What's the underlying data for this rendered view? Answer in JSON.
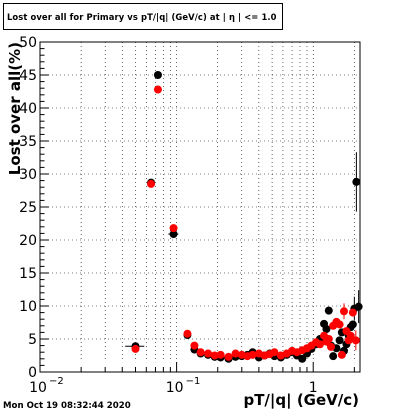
{
  "chart_data": {
    "type": "scatter",
    "title": "Lost over all for Primary vs pT/|q| (GeV/c) at | η | <= 1.0",
    "xlabel": "pT/|q| (GeV/c)",
    "ylabel": "Lost over all(%)",
    "x_scale": "log",
    "xlim": [
      0.01,
      2.2
    ],
    "ylim": [
      0,
      50
    ],
    "y_ticks": [
      0,
      5,
      10,
      15,
      20,
      25,
      30,
      35,
      40,
      45,
      50
    ],
    "y_tick_labels": [
      "0",
      "5",
      "10",
      "15",
      "20",
      "25",
      "30",
      "35",
      "40",
      "45",
      "50"
    ],
    "x_major_ticks": [
      0.01,
      0.1,
      1
    ],
    "x_tick_labels": [
      {
        "base": "10",
        "exp": "−2"
      },
      {
        "base": "10",
        "exp": "−1"
      },
      {
        "base": "1",
        "exp": ""
      }
    ],
    "grid": true,
    "timestamp": "Mon Oct 19 08:32:44 2020",
    "series": [
      {
        "color": "#000000",
        "points": [
          {
            "x": 0.05,
            "y": 3.9,
            "xerr": 0.008
          },
          {
            "x": 0.065,
            "y": 28.7
          },
          {
            "x": 0.073,
            "y": 45.0
          },
          {
            "x": 0.095,
            "y": 20.9,
            "xerr": 0.008
          },
          {
            "x": 0.12,
            "y": 5.6
          },
          {
            "x": 0.135,
            "y": 3.4
          },
          {
            "x": 0.15,
            "y": 2.8
          },
          {
            "x": 0.17,
            "y": 2.6
          },
          {
            "x": 0.19,
            "y": 2.3
          },
          {
            "x": 0.21,
            "y": 2.2
          },
          {
            "x": 0.24,
            "y": 2.0
          },
          {
            "x": 0.27,
            "y": 2.3
          },
          {
            "x": 0.3,
            "y": 2.4
          },
          {
            "x": 0.33,
            "y": 2.6
          },
          {
            "x": 0.36,
            "y": 3.0
          },
          {
            "x": 0.4,
            "y": 2.2
          },
          {
            "x": 0.44,
            "y": 2.5
          },
          {
            "x": 0.48,
            "y": 2.8
          },
          {
            "x": 0.52,
            "y": 2.4
          },
          {
            "x": 0.58,
            "y": 2.2
          },
          {
            "x": 0.64,
            "y": 2.6
          },
          {
            "x": 0.7,
            "y": 3.0
          },
          {
            "x": 0.76,
            "y": 2.5
          },
          {
            "x": 0.83,
            "y": 2.0
          },
          {
            "x": 0.9,
            "y": 2.8
          },
          {
            "x": 0.97,
            "y": 3.5
          },
          {
            "x": 1.05,
            "y": 4.2
          },
          {
            "x": 1.12,
            "y": 5.0
          },
          {
            "x": 1.2,
            "y": 7.3
          },
          {
            "x": 1.25,
            "y": 6.5
          },
          {
            "x": 1.3,
            "y": 9.3
          },
          {
            "x": 1.35,
            "y": 4.0
          },
          {
            "x": 1.4,
            "y": 2.4
          },
          {
            "x": 1.48,
            "y": 3.6
          },
          {
            "x": 1.56,
            "y": 4.8
          },
          {
            "x": 1.62,
            "y": 6.0
          },
          {
            "x": 1.68,
            "y": 3.2
          },
          {
            "x": 1.75,
            "y": 4.2
          },
          {
            "x": 1.82,
            "y": 5.5
          },
          {
            "x": 1.88,
            "y": 6.8
          },
          {
            "x": 1.95,
            "y": 7.2
          },
          {
            "x": 2.0,
            "y": 9.6,
            "yerr": 1.8
          },
          {
            "x": 2.07,
            "y": 28.8,
            "yerr": 4.5
          },
          {
            "x": 2.15,
            "y": 9.9,
            "yerr": 2.5
          }
        ]
      },
      {
        "color": "#ff0000",
        "points": [
          {
            "x": 0.05,
            "y": 3.5
          },
          {
            "x": 0.065,
            "y": 28.5
          },
          {
            "x": 0.073,
            "y": 42.8
          },
          {
            "x": 0.095,
            "y": 21.8
          },
          {
            "x": 0.12,
            "y": 5.8
          },
          {
            "x": 0.135,
            "y": 4.0
          },
          {
            "x": 0.15,
            "y": 3.0
          },
          {
            "x": 0.17,
            "y": 2.8
          },
          {
            "x": 0.19,
            "y": 2.5
          },
          {
            "x": 0.21,
            "y": 2.6
          },
          {
            "x": 0.24,
            "y": 2.3
          },
          {
            "x": 0.27,
            "y": 2.8
          },
          {
            "x": 0.3,
            "y": 2.6
          },
          {
            "x": 0.33,
            "y": 2.4
          },
          {
            "x": 0.36,
            "y": 2.6
          },
          {
            "x": 0.4,
            "y": 2.8
          },
          {
            "x": 0.44,
            "y": 2.5
          },
          {
            "x": 0.48,
            "y": 2.7
          },
          {
            "x": 0.52,
            "y": 3.0
          },
          {
            "x": 0.58,
            "y": 2.5
          },
          {
            "x": 0.64,
            "y": 2.8
          },
          {
            "x": 0.7,
            "y": 3.2
          },
          {
            "x": 0.76,
            "y": 3.0
          },
          {
            "x": 0.83,
            "y": 3.3
          },
          {
            "x": 0.9,
            "y": 3.6
          },
          {
            "x": 0.97,
            "y": 4.0
          },
          {
            "x": 1.05,
            "y": 4.5
          },
          {
            "x": 1.12,
            "y": 4.2
          },
          {
            "x": 1.2,
            "y": 5.5
          },
          {
            "x": 1.25,
            "y": 4.6
          },
          {
            "x": 1.3,
            "y": 5.0
          },
          {
            "x": 1.35,
            "y": 3.8
          },
          {
            "x": 1.4,
            "y": 7.0
          },
          {
            "x": 1.48,
            "y": 7.6
          },
          {
            "x": 1.56,
            "y": 7.2
          },
          {
            "x": 1.62,
            "y": 2.6
          },
          {
            "x": 1.68,
            "y": 9.2,
            "yerr": 1.2
          },
          {
            "x": 1.75,
            "y": 6.2
          },
          {
            "x": 1.82,
            "y": 4.8
          },
          {
            "x": 1.88,
            "y": 5.5
          },
          {
            "x": 1.95,
            "y": 9.0
          },
          {
            "x": 2.05,
            "y": 4.8,
            "yerr": 1.5
          }
        ]
      }
    ]
  }
}
